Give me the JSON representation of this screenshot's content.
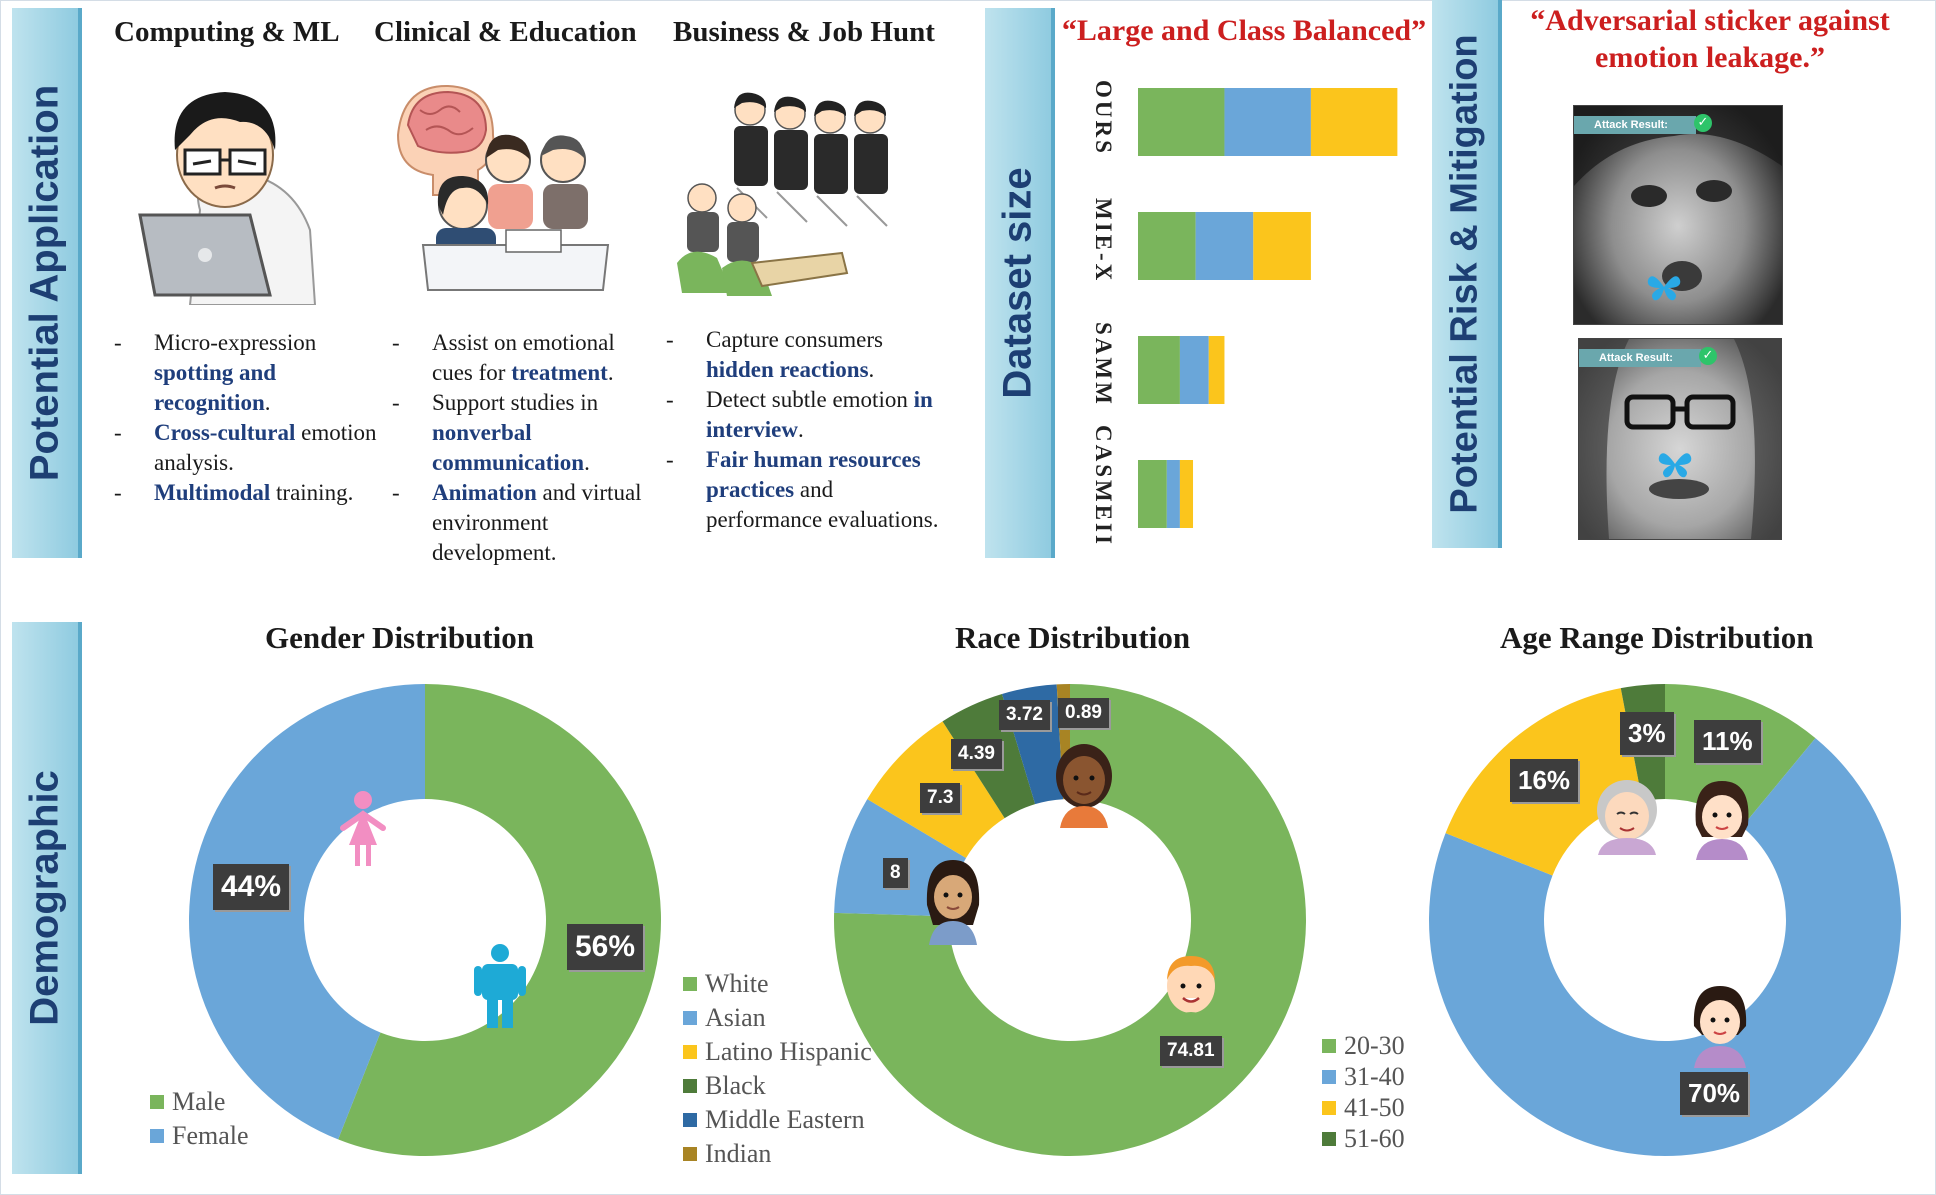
{
  "sections": {
    "application": "Potential Application",
    "dataset": "Dataset size",
    "risk": "Potential Risk & Mitigation",
    "demographic": "Demographic"
  },
  "columns": [
    {
      "title": "Computing & ML",
      "bullets": [
        [
          {
            "t": "Micro-expression "
          },
          {
            "t": "spotting and recognition",
            "hl": true
          },
          {
            "t": "."
          }
        ],
        [
          {
            "t": "Cross-cultural",
            "hl": true
          },
          {
            "t": " emotion analysis."
          }
        ],
        [
          {
            "t": "Multimodal",
            "hl": true
          },
          {
            "t": " training."
          }
        ]
      ]
    },
    {
      "title": "Clinical & Education",
      "bullets": [
        [
          {
            "t": "Assist on emotional cues for "
          },
          {
            "t": "treatment",
            "hl": true
          },
          {
            "t": "."
          }
        ],
        [
          {
            "t": "Support studies in "
          },
          {
            "t": "nonverbal communication",
            "hl": true
          },
          {
            "t": "."
          }
        ],
        [
          {
            "t": "Animation",
            "hl": true
          },
          {
            "t": " and virtual environment development."
          }
        ]
      ]
    },
    {
      "title": "Business & Job Hunt",
      "bullets": [
        [
          {
            "t": "Capture consumers "
          },
          {
            "t": "hidden reactions",
            "hl": true
          },
          {
            "t": "."
          }
        ],
        [
          {
            "t": "Detect subtle emotion "
          },
          {
            "t": "in interview",
            "hl": true
          },
          {
            "t": "."
          }
        ],
        [
          {
            "t": "Fair human resources practices",
            "hl": true
          },
          {
            "t": " and performance evaluations."
          }
        ]
      ]
    }
  ],
  "dataset_title": "“Large and Class Balanced”",
  "risk_title": "“Adversarial sticker against emotion leakage.”",
  "attack_label": "Attack Result:",
  "colors": {
    "green": "#7ab55c",
    "blue": "#6aa6d9",
    "yellow": "#fbc51c",
    "darkgreen": "#4e7b3a",
    "navy": "#2e6aa4",
    "brown": "#a88424",
    "female_icon": "#f28ec2",
    "male_icon": "#1eaad6"
  },
  "chart_data": [
    {
      "type": "bar",
      "title": "Dataset size",
      "categories": [
        "OURS",
        "MIE-X",
        "SAMM",
        "CASMEII"
      ],
      "series": [
        {
          "values": [
            0.33,
            0.22,
            0.16,
            0.11
          ]
        },
        {
          "values": [
            0.33,
            0.22,
            0.11,
            0.05
          ]
        },
        {
          "values": [
            0.33,
            0.22,
            0.06,
            0.05
          ]
        }
      ],
      "xlim": [
        0,
        1
      ]
    },
    {
      "type": "pie",
      "title": "Gender Distribution",
      "labels": [
        "Male",
        "Female"
      ],
      "values": [
        56,
        44
      ],
      "data_labels": [
        "56%",
        "44%"
      ]
    },
    {
      "type": "pie",
      "title": "Race Distribution",
      "labels": [
        "White",
        "Asian",
        "Latino Hispanic",
        "Black",
        "Middle Eastern",
        "Indian"
      ],
      "values": [
        74.81,
        8,
        7.3,
        4.39,
        3.72,
        0.89
      ],
      "data_labels": [
        "74.81",
        "8",
        "7.3",
        "4.39",
        "3.72",
        "0.89"
      ]
    },
    {
      "type": "pie",
      "title": "Age Range Distribution",
      "labels": [
        "20-30",
        "31-40",
        "41-50",
        "51-60"
      ],
      "values": [
        11,
        70,
        16,
        3
      ],
      "data_labels": [
        "11%",
        "70%",
        "16%",
        "3%"
      ]
    }
  ]
}
